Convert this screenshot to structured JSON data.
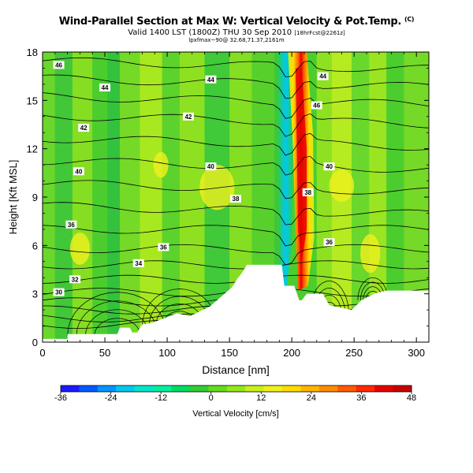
{
  "header": {
    "title": "Wind-Parallel Section at Max W: Vertical Velocity & Pot.Temp.",
    "copyright": "(C)",
    "valid_prefix": "Valid 1400 LST (1800Z) THU 30 Sep 2010",
    "forecast_tag": "[18hrFcst@2261z]",
    "subline": "lpxfmax~90@ 32.68,71.37,2161m"
  },
  "chart_data": {
    "type": "heatmap",
    "xlabel": "Distance [nm]",
    "ylabel": "Height [Kft MSL]",
    "xlim": [
      0,
      310
    ],
    "ylim": [
      0,
      18
    ],
    "xticks": [
      0,
      50,
      100,
      150,
      200,
      250,
      300
    ],
    "yticks": [
      0,
      3,
      6,
      9,
      12,
      15,
      18
    ],
    "colorbar": {
      "label": "Vertical Velocity [cm/s]",
      "ticks": [
        -36,
        -24,
        -12,
        0,
        12,
        24,
        36,
        48
      ],
      "colors": [
        "#1a1aff",
        "#005aff",
        "#0096ff",
        "#00c8f0",
        "#00e6c8",
        "#00f0a0",
        "#00dc64",
        "#32cd32",
        "#64dc1e",
        "#96e61e",
        "#c8f01e",
        "#f0f01e",
        "#ffdc00",
        "#ffb400",
        "#ff8c00",
        "#ff5a00",
        "#ff2800",
        "#e60000",
        "#c80000"
      ]
    },
    "series": [
      {
        "name": "Vertical Velocity",
        "unit": "cm/s",
        "range": [
          -36,
          48
        ],
        "features": [
          {
            "description": "updraft core",
            "x": 208,
            "value": 48
          },
          {
            "description": "downdraft",
            "x": 196,
            "value": -12
          }
        ]
      },
      {
        "name": "Potential Temperature",
        "contour_levels": [
          30,
          32,
          34,
          36,
          38,
          40,
          42,
          44,
          46
        ],
        "labels": [
          {
            "text": "46",
            "x": 13,
            "y": 17.2
          },
          {
            "text": "44",
            "x": 50,
            "y": 15.8
          },
          {
            "text": "44",
            "x": 135,
            "y": 16.3
          },
          {
            "text": "44",
            "x": 225,
            "y": 16.5
          },
          {
            "text": "46",
            "x": 220,
            "y": 14.7
          },
          {
            "text": "42",
            "x": 33,
            "y": 13.3
          },
          {
            "text": "42",
            "x": 117,
            "y": 14.0
          },
          {
            "text": "40",
            "x": 29,
            "y": 10.6
          },
          {
            "text": "40",
            "x": 135,
            "y": 10.9
          },
          {
            "text": "40",
            "x": 230,
            "y": 10.9
          },
          {
            "text": "38",
            "x": 155,
            "y": 8.9
          },
          {
            "text": "38",
            "x": 213,
            "y": 9.3
          },
          {
            "text": "36",
            "x": 23,
            "y": 7.3
          },
          {
            "text": "36",
            "x": 97,
            "y": 5.9
          },
          {
            "text": "36",
            "x": 230,
            "y": 6.2
          },
          {
            "text": "34",
            "x": 77,
            "y": 4.9
          },
          {
            "text": "32",
            "x": 26,
            "y": 3.9
          },
          {
            "text": "30",
            "x": 13,
            "y": 3.1
          }
        ]
      }
    ]
  }
}
